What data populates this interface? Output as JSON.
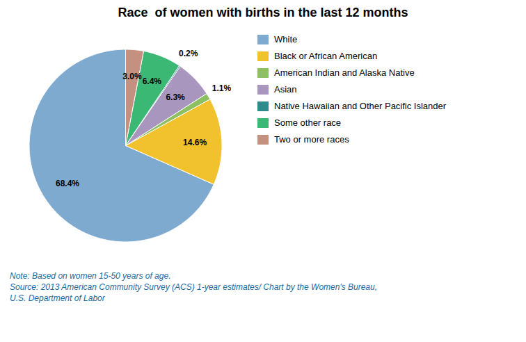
{
  "chart_data": {
    "type": "pie",
    "title": "Race  of women with births in the last 12 months",
    "categories": [
      "White",
      "Black or African American",
      "American Indian and Alaska Native",
      "Asian",
      "Native Hawaiian and Other Pacific Islander",
      "Some other race",
      "Two or more races"
    ],
    "values": [
      68.4,
      14.6,
      1.1,
      6.3,
      0.2,
      6.4,
      3.0
    ],
    "value_labels": [
      "68.4%",
      "14.6%",
      "1.1%",
      "6.3%",
      "0.2%",
      "6.4%",
      "3.0%"
    ],
    "colors": [
      "#7EAACF",
      "#F2C12E",
      "#8CC063",
      "#A896BF",
      "#2E8B8B",
      "#3CB875",
      "#C49080"
    ],
    "data_labels": true,
    "legend": "right",
    "annotations": [
      {
        "text": "Note: Based on women 15-50 years of age.",
        "color": "#1a6aa0"
      },
      {
        "text": "Source: 2013 American Community Survey (ACS) 1-year estimates/ Chart by the Women's Bureau,",
        "color": "#1a6aa0"
      },
      {
        "text": "U.S. Department of Labor",
        "color": "#1a6aa0"
      }
    ]
  }
}
